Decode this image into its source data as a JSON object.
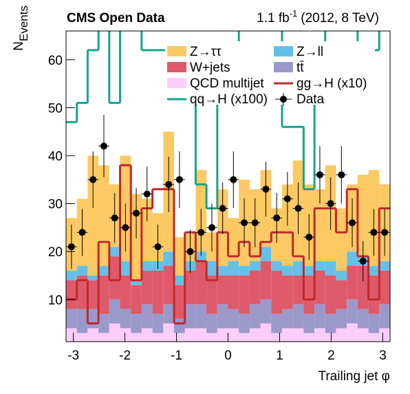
{
  "chart_data": {
    "type": "histogram",
    "stacked": true,
    "title": "CMS Open Data",
    "lumi_label": "1.1 fb",
    "lumi_exponent": "-1",
    "lumi_note": "(2012, 8 TeV)",
    "xlabel": "Trailing jet  φ",
    "ylabel": "N",
    "ylabel_subscript": "Events",
    "xlim": [
      -3.142,
      3.142
    ],
    "ylim": [
      1.2,
      66
    ],
    "xticks": [
      -3,
      -2,
      -1,
      0,
      1,
      2,
      3
    ],
    "yticks": [
      10,
      20,
      30,
      40,
      50,
      60
    ],
    "bins": [
      -3.142,
      -2.932,
      -2.723,
      -2.513,
      -2.304,
      -2.094,
      -1.885,
      -1.676,
      -1.466,
      -1.257,
      -1.047,
      -0.838,
      -0.628,
      -0.419,
      -0.209,
      0,
      0.209,
      0.419,
      0.628,
      0.838,
      1.047,
      1.257,
      1.466,
      1.676,
      1.885,
      2.094,
      2.304,
      2.513,
      2.723,
      2.932,
      3.142
    ],
    "series": [
      {
        "name": "QCD multijet",
        "color": "#fbcdfb",
        "values": [
          4,
          3,
          4,
          3,
          5,
          4,
          3,
          4,
          3,
          5,
          3,
          4,
          4,
          3,
          4,
          4,
          3,
          4,
          5,
          3,
          4,
          4,
          3,
          4,
          3,
          4,
          5,
          4,
          3,
          4
        ]
      },
      {
        "name": "tt̄",
        "color": "#9b98cc",
        "values": [
          4,
          5,
          4,
          4,
          5,
          4,
          4,
          5,
          4,
          4,
          3,
          5,
          5,
          4,
          5,
          4,
          4,
          5,
          5,
          4,
          4,
          5,
          4,
          5,
          4,
          4,
          5,
          4,
          4,
          5
        ]
      },
      {
        "name": "W+jets",
        "color": "#de5a6a",
        "values": [
          6,
          7,
          6,
          8,
          9,
          7,
          6,
          7,
          9,
          8,
          7,
          7,
          9,
          8,
          6,
          7,
          8,
          7,
          8,
          9,
          7,
          6,
          8,
          7,
          8,
          6,
          7,
          9,
          8,
          7
        ]
      },
      {
        "name": "Z→ll",
        "color": "#64c0e8",
        "values": [
          2,
          2,
          1,
          2,
          2,
          3,
          1,
          2,
          2,
          3,
          2,
          2,
          2,
          3,
          2,
          3,
          2,
          2,
          3,
          2,
          2,
          3,
          2,
          2,
          3,
          2,
          3,
          2,
          2,
          2
        ]
      },
      {
        "name": "Z→ττ",
        "color": "#fdc962",
        "values": [
          11,
          14,
          25,
          21,
          13,
          22,
          18,
          13,
          10,
          25,
          8,
          6,
          17,
          6,
          16,
          9,
          18,
          15,
          16,
          11,
          17,
          21,
          17,
          15,
          20,
          13,
          14,
          17,
          20,
          16
        ]
      }
    ],
    "overlays": [
      {
        "name": "gg→H (x10)",
        "color": "#c0282a",
        "values": [
          10,
          14,
          5,
          22,
          14,
          38,
          14,
          29,
          33,
          33,
          5,
          24,
          18,
          14,
          24,
          19,
          22,
          19,
          22,
          24,
          24,
          19,
          10,
          29,
          29,
          24,
          33,
          19,
          10,
          29
        ]
      },
      {
        "name": "qq→H (x100)",
        "color": "#12a58b",
        "values": [
          47,
          51,
          62,
          70,
          51,
          70,
          70,
          62,
          62,
          62,
          58,
          58,
          34,
          29,
          62,
          62,
          70,
          70,
          70,
          70,
          46,
          46,
          33,
          62,
          70,
          70,
          70,
          58,
          62,
          70
        ]
      }
    ],
    "points": {
      "name": "Data",
      "color": "#000000",
      "values": [
        21,
        24,
        35,
        42,
        27,
        25,
        28,
        32,
        21,
        34,
        35,
        20,
        24,
        25,
        29,
        35,
        26,
        26,
        33,
        27,
        31,
        29,
        23,
        36,
        30,
        36,
        26,
        18,
        24,
        24
      ],
      "errors": [
        4.6,
        4.9,
        5.9,
        6.5,
        5.2,
        5.0,
        5.3,
        5.7,
        4.6,
        5.8,
        5.9,
        4.5,
        4.9,
        5.0,
        5.4,
        5.9,
        5.1,
        5.1,
        5.7,
        5.2,
        5.6,
        5.4,
        4.8,
        6.0,
        5.5,
        6.0,
        5.1,
        4.2,
        4.9,
        4.9
      ]
    }
  }
}
